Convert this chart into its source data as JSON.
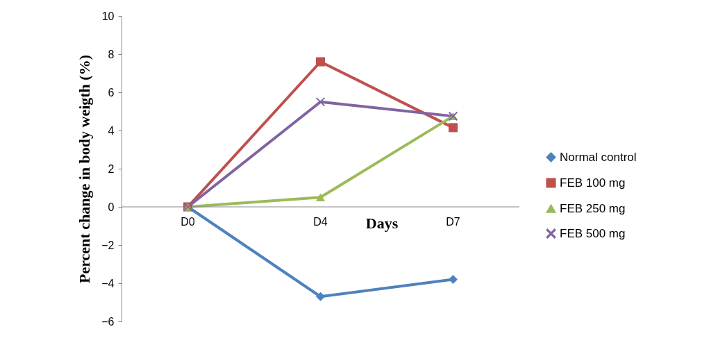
{
  "chart_data": {
    "type": "line",
    "xlabel": "Days",
    "ylabel": "Percent change in body weigth (%)",
    "categories": [
      "D0",
      "D4",
      "D7"
    ],
    "series": [
      {
        "name": "Normal control",
        "color": "#4f81bd",
        "marker": "diamond",
        "values": [
          0,
          -4.7,
          -3.8
        ]
      },
      {
        "name": "FEB 100 mg",
        "color": "#c0504d",
        "marker": "square",
        "values": [
          0,
          7.6,
          4.15
        ]
      },
      {
        "name": "FEB 250 mg",
        "color": "#9bbb59",
        "marker": "triangle",
        "values": [
          0,
          0.5,
          4.75
        ]
      },
      {
        "name": "FEB 500 mg",
        "color": "#8064a2",
        "marker": "cross",
        "values": [
          0,
          5.5,
          4.75
        ]
      }
    ],
    "ylim": [
      -6,
      10
    ],
    "yticks": [
      -6,
      -4,
      -2,
      0,
      2,
      4,
      6,
      8,
      10
    ],
    "grid": false,
    "legend": "right",
    "line_style": "solid"
  }
}
